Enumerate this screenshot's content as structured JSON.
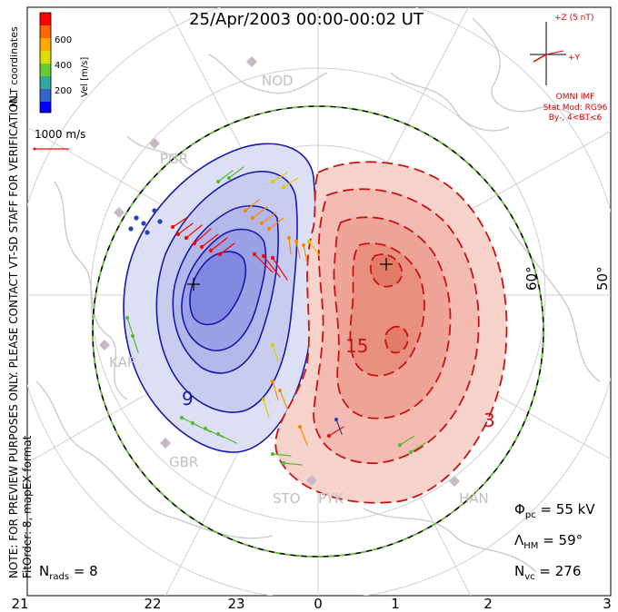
{
  "title": "25/Apr/2003 00:00-00:02 UT",
  "side_note": "NOTE: FOR PREVIEW PURPOSES ONLY. PLEASE CONTACT VT-SD STAFF FOR VERIFICATION.",
  "fit_note": "FitOrder: 8, mapEX format",
  "coord_label": "MLT coordinates",
  "colorbar": {
    "label": "Vel [m/s]",
    "ticks": [
      "600",
      "400",
      "200"
    ],
    "colors": [
      "#ff0000",
      "#ff6600",
      "#ffaa00",
      "#dddd00",
      "#66cc33",
      "#33aa99",
      "#3366cc",
      "#0000ff"
    ]
  },
  "scale_vector": "1000 m/s",
  "imf": {
    "z_label": "+Z (5 nT)",
    "y_label": "+Y",
    "source": "OMNI IMF",
    "model": "Stat Mod: RG96",
    "condition": "By-, 4<BT<6"
  },
  "stations": [
    "NOD",
    "PGR",
    "KAP",
    "GBR",
    "STO",
    "PYK",
    "HAN"
  ],
  "lat_labels": [
    "60°",
    "50°"
  ],
  "contour_labels": [
    "15",
    "3",
    "9"
  ],
  "stats": {
    "phi_symbol": "Φ",
    "phi_sub": "pc",
    "phi_value": " = 55 kV",
    "lambda_symbol": "Λ",
    "lambda_sub": "HM",
    "lambda_value": " = 59°",
    "nvc_symbol": "N",
    "nvc_sub": "vc",
    "nvc_value": " = 276",
    "nrads_symbol": "N",
    "nrads_sub": "rads",
    "nrads_value": " = 8"
  },
  "mlt_ticks": [
    "21",
    "22",
    "23",
    "0",
    "1",
    "2",
    "3"
  ]
}
